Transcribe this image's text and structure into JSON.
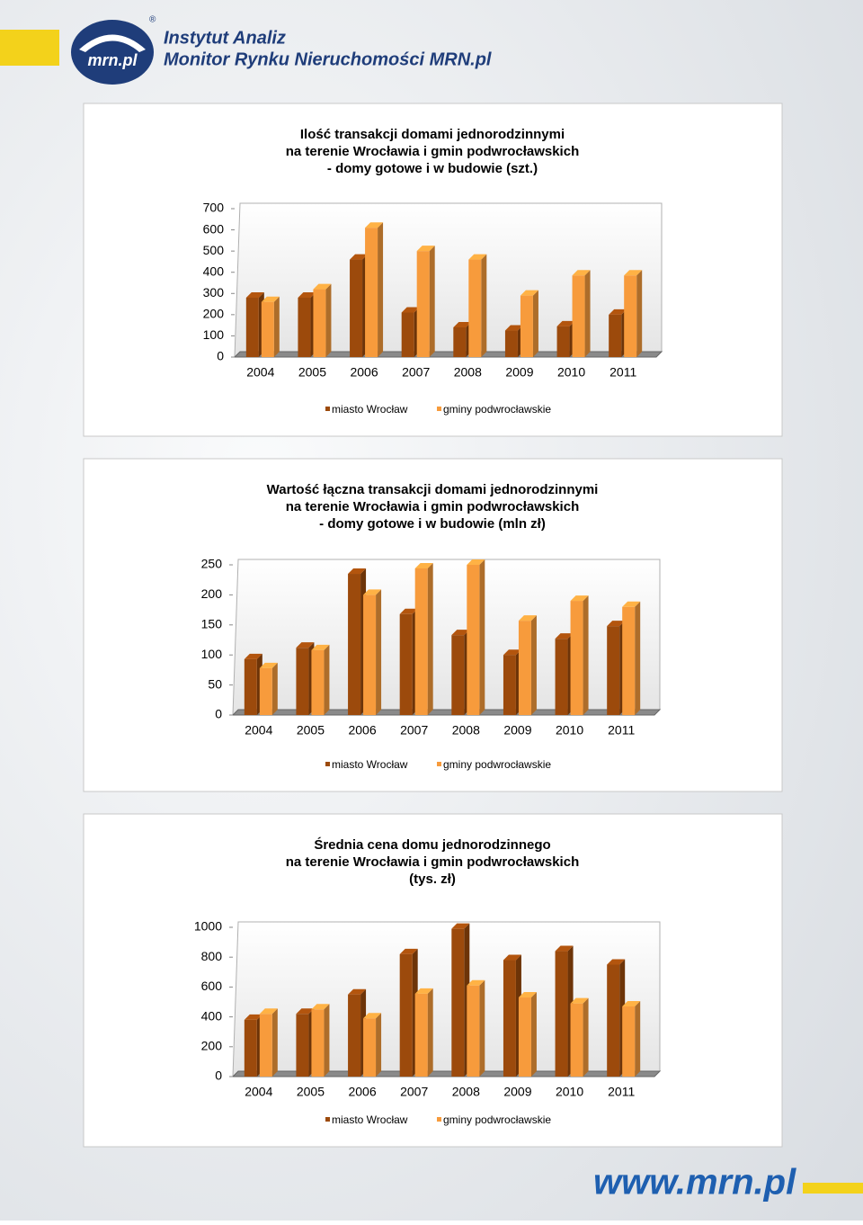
{
  "header": {
    "logo": "mrn.pl",
    "mark": "®",
    "line1": "Instytut Analiz",
    "line2": "Monitor Rynku Nieruchomości MRN.pl"
  },
  "footer": {
    "url": "www.mrn.pl"
  },
  "chart_data": [
    {
      "type": "bar",
      "title": [
        "Ilość transakcji domami jednorodzinnymi",
        "na terenie Wrocławia i gmin podwrocławskich",
        "- domy gotowe i w budowie  (szt.)"
      ],
      "categories": [
        "2004",
        "2005",
        "2006",
        "2007",
        "2008",
        "2009",
        "2010",
        "2011"
      ],
      "series": [
        {
          "name": "miasto Wrocław",
          "color": "#9c4a0c",
          "values": [
            280,
            280,
            460,
            210,
            140,
            125,
            145,
            200
          ]
        },
        {
          "name": "gminy podwrocławskie",
          "color": "#f79b3c",
          "values": [
            260,
            320,
            610,
            500,
            460,
            290,
            385,
            385
          ]
        }
      ],
      "ylim": [
        0,
        700
      ],
      "yticks": [
        0,
        100,
        200,
        300,
        400,
        500,
        600,
        700
      ],
      "legend": "bottom"
    },
    {
      "type": "bar",
      "title": [
        "Wartość łączna transakcji domami jednorodzinnymi",
        "na terenie Wrocławia i gmin podwrocławskich",
        "- domy gotowe i w budowie  (mln zł)"
      ],
      "categories": [
        "2004",
        "2005",
        "2006",
        "2007",
        "2008",
        "2009",
        "2010",
        "2011"
      ],
      "series": [
        {
          "name": "miasto Wrocław",
          "color": "#9c4a0c",
          "values": [
            93,
            112,
            235,
            168,
            133,
            100,
            127,
            148
          ]
        },
        {
          "name": "gminy podwrocławskie",
          "color": "#f79b3c",
          "values": [
            78,
            108,
            200,
            244,
            250,
            157,
            190,
            180
          ]
        }
      ],
      "ylim": [
        0,
        250
      ],
      "yticks": [
        0,
        50,
        100,
        150,
        200,
        250
      ],
      "legend": "bottom"
    },
    {
      "type": "bar",
      "title": [
        "Średnia cena domu jednorodzinnego",
        "na terenie Wrocławia i gmin podwrocławskich",
        "(tys. zł)"
      ],
      "categories": [
        "2004",
        "2005",
        "2006",
        "2007",
        "2008",
        "2009",
        "2010",
        "2011"
      ],
      "series": [
        {
          "name": "miasto Wrocław",
          "color": "#9c4a0c",
          "values": [
            380,
            420,
            550,
            820,
            990,
            780,
            840,
            750
          ]
        },
        {
          "name": "gminy podwrocławskie",
          "color": "#f79b3c",
          "values": [
            420,
            450,
            390,
            555,
            610,
            530,
            490,
            470
          ]
        }
      ],
      "ylim": [
        0,
        1000
      ],
      "yticks": [
        0,
        200,
        400,
        600,
        800,
        1000
      ],
      "legend": "bottom"
    }
  ]
}
